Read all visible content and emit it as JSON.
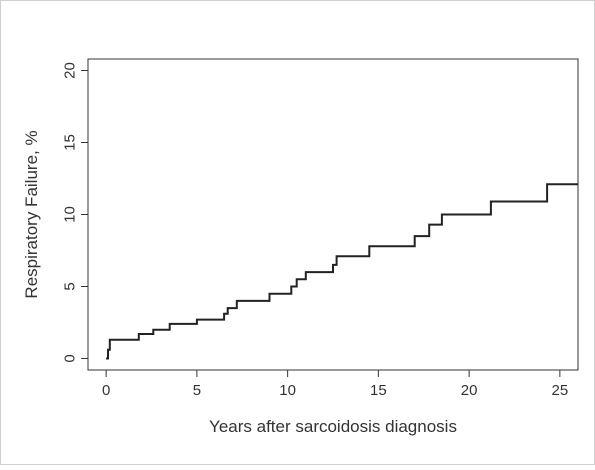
{
  "chart_data": {
    "type": "line",
    "step": true,
    "xlabel": "Years after sarcoidosis diagnosis",
    "ylabel": "Respiratory Failure, %",
    "xlim": [
      -1,
      26
    ],
    "ylim": [
      -0.8,
      20.8
    ],
    "x_ticks": [
      0,
      5,
      10,
      15,
      20,
      25
    ],
    "y_ticks": [
      0,
      5,
      10,
      15,
      20
    ],
    "grid": false,
    "series": [
      {
        "x": [
          0,
          0.1,
          0.2,
          1.8,
          2.6,
          3.5,
          5.0,
          6.5,
          6.7,
          7.2,
          9.0,
          10.2,
          10.5,
          11.0,
          12.5,
          12.7,
          14.5,
          17.0,
          17.8,
          18.5,
          21.2,
          24.3,
          26
        ],
        "y": [
          0,
          0.6,
          1.3,
          1.7,
          2.0,
          2.4,
          2.7,
          3.1,
          3.5,
          4.0,
          4.5,
          5.0,
          5.5,
          6.0,
          6.5,
          7.1,
          7.8,
          8.5,
          9.3,
          10.0,
          10.9,
          12.1,
          12.1
        ]
      }
    ]
  }
}
